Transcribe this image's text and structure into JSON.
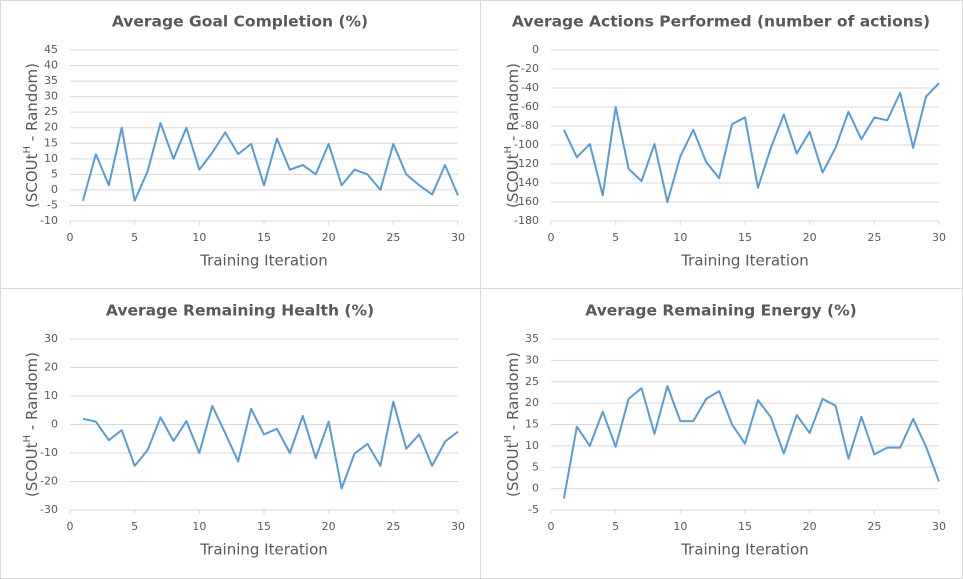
{
  "chart_data": [
    {
      "type": "line",
      "title": "Average Goal Completion (%)",
      "x_label": "Training Iteration",
      "y_label": [
        "(SCOUt",
        "H",
        " - Random)"
      ],
      "x": [
        1,
        2,
        3,
        4,
        5,
        6,
        7,
        8,
        9,
        10,
        11,
        12,
        13,
        14,
        15,
        16,
        17,
        18,
        19,
        20,
        21,
        22,
        23,
        24,
        25,
        26,
        27,
        28,
        29,
        30
      ],
      "values": [
        -3.5,
        11.5,
        1.5,
        20,
        -3.5,
        6,
        21.5,
        10,
        20,
        6.5,
        12,
        18.5,
        11.5,
        14.8,
        1.5,
        16.5,
        6.5,
        8,
        5,
        14.8,
        1.5,
        6.5,
        5,
        0,
        14.8,
        5,
        1.5,
        -1.5,
        8,
        -1.8
      ],
      "color": "#5b9bd5",
      "xlim": [
        0,
        30
      ],
      "xticks": [
        0,
        5,
        10,
        15,
        20,
        25,
        30
      ],
      "ylim": [
        -10,
        45
      ],
      "yticks": [
        -10,
        -5,
        0,
        5,
        10,
        15,
        20,
        25,
        30,
        35,
        40,
        45
      ],
      "grid": true
    },
    {
      "type": "line",
      "title": "Average Actions Performed (number of actions)",
      "x_label": "Training Iteration",
      "y_label": [
        "(SCOUt",
        "H",
        " - Random)"
      ],
      "x": [
        1,
        2,
        3,
        4,
        5,
        6,
        7,
        8,
        9,
        10,
        11,
        12,
        13,
        14,
        15,
        16,
        17,
        18,
        19,
        20,
        21,
        22,
        23,
        24,
        25,
        26,
        27,
        28,
        29,
        30
      ],
      "values": [
        -84,
        -113,
        -99,
        -153,
        -60,
        -125,
        -138,
        -99,
        -160,
        -112,
        -84,
        -118,
        -135,
        -78,
        -71,
        -145,
        -103,
        -68,
        -109,
        -86,
        -129,
        -103,
        -65,
        -94,
        -71,
        -74,
        -45,
        -103,
        -49,
        -35
      ],
      "color": "#5b9bd5",
      "xlim": [
        0,
        30
      ],
      "xticks": [
        0,
        5,
        10,
        15,
        20,
        25,
        30
      ],
      "ylim": [
        -180,
        0
      ],
      "yticks": [
        -180,
        -160,
        -140,
        -120,
        -100,
        -80,
        -60,
        -40,
        -20,
        0
      ],
      "grid": true
    },
    {
      "type": "line",
      "title": "Average Remaining Health (%)",
      "x_label": "Training Iteration",
      "y_label": [
        "(SCOUt",
        "H",
        " - Random)"
      ],
      "x": [
        1,
        2,
        3,
        4,
        5,
        6,
        7,
        8,
        9,
        10,
        11,
        12,
        13,
        14,
        15,
        16,
        17,
        18,
        19,
        20,
        21,
        22,
        23,
        24,
        25,
        26,
        27,
        28,
        29,
        30
      ],
      "values": [
        2,
        1,
        -5.5,
        -2,
        -14.5,
        -9,
        2.5,
        -5.8,
        1.2,
        -10,
        6.5,
        -3,
        -13,
        5.5,
        -3.5,
        -1.5,
        -10,
        3,
        -11.8,
        1,
        -22.5,
        -10.2,
        -6.8,
        -14.5,
        8,
        -8.5,
        -3.5,
        -14.5,
        -6,
        -2.5
      ],
      "color": "#5b9bd5",
      "xlim": [
        0,
        30
      ],
      "xticks": [
        0,
        5,
        10,
        15,
        20,
        25,
        30
      ],
      "ylim": [
        -30,
        30
      ],
      "yticks": [
        -30,
        -20,
        -10,
        0,
        10,
        20,
        30
      ],
      "grid": true
    },
    {
      "type": "line",
      "title": "Average Remaining Energy (%)",
      "x_label": "Training Iteration",
      "y_label": [
        "(SCOUt",
        "H",
        " - Random)"
      ],
      "x": [
        1,
        2,
        3,
        4,
        5,
        6,
        7,
        8,
        9,
        10,
        11,
        12,
        13,
        14,
        15,
        16,
        17,
        18,
        19,
        20,
        21,
        22,
        23,
        24,
        25,
        26,
        27,
        28,
        29,
        30
      ],
      "values": [
        -2.3,
        14.5,
        10,
        18,
        9.8,
        21,
        23.5,
        12.8,
        24,
        15.8,
        15.8,
        21,
        22.8,
        15,
        10.5,
        20.7,
        16.7,
        8.2,
        17.2,
        13,
        21,
        19.4,
        7,
        16.8,
        8,
        9.6,
        9.6,
        16.3,
        9.8,
        1.7
      ],
      "color": "#5b9bd5",
      "xlim": [
        0,
        30
      ],
      "xticks": [
        0,
        5,
        10,
        15,
        20,
        25,
        30
      ],
      "ylim": [
        -5,
        35
      ],
      "yticks": [
        -5,
        0,
        5,
        10,
        15,
        20,
        25,
        30,
        35
      ],
      "grid": true
    }
  ]
}
